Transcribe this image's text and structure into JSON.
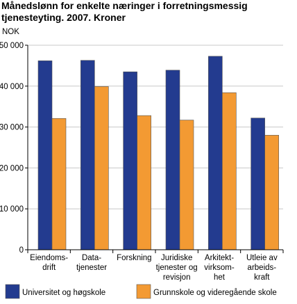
{
  "title_lines": [
    "Månedslønn for enkelte næringer i forretningsmessig",
    "tjenesteyting. 2007. Kroner"
  ],
  "chart_data": {
    "type": "bar",
    "title": "Månedslønn for enkelte næringer i forretningsmessig tjenesteyting. 2007. Kroner",
    "ylabel": "NOK",
    "xlabel": "",
    "ylim": [
      0,
      50000
    ],
    "yticks": [
      0,
      10000,
      20000,
      30000,
      40000,
      50000
    ],
    "ytick_labels": [
      "0",
      "10 000",
      "20 000",
      "30 000",
      "40 000",
      "50 000"
    ],
    "grid": true,
    "legend_position": "bottom",
    "categories": [
      [
        "Eiendoms-",
        "drift"
      ],
      [
        "Data-",
        "tjenester"
      ],
      [
        "Forskning"
      ],
      [
        "Juridiske",
        "tjenester og",
        "revisjon"
      ],
      [
        "Arkitekt-",
        "virksom-",
        "het"
      ],
      [
        "Utleie av",
        "arbeids-",
        "kraft"
      ]
    ],
    "series": [
      {
        "name": "Universitet og høgskole",
        "color": "#233b8f",
        "values": [
          46200,
          46300,
          43500,
          43900,
          47300,
          32200
        ]
      },
      {
        "name": "Grunnskole og videregående skole",
        "color": "#f39a33",
        "values": [
          32100,
          39900,
          32800,
          31700,
          38400,
          28000
        ]
      }
    ]
  }
}
